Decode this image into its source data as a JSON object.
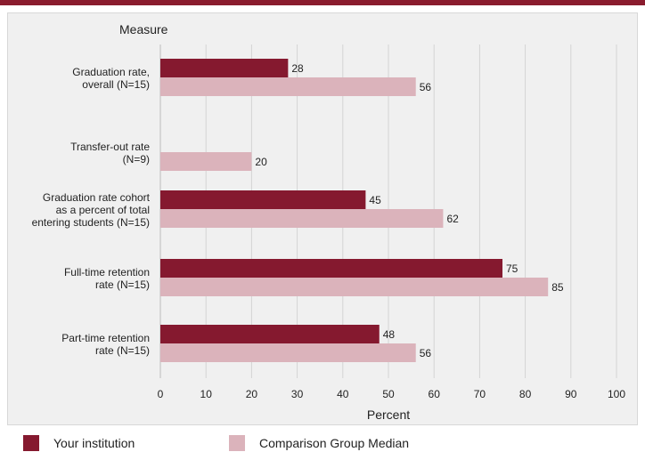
{
  "chart_data": {
    "type": "bar",
    "orientation": "horizontal",
    "title": "",
    "category_axis_title": "Measure",
    "xlabel": "Percent",
    "xlim": [
      0,
      100
    ],
    "xticks": [
      0,
      10,
      20,
      30,
      40,
      50,
      60,
      70,
      80,
      90,
      100
    ],
    "grid": true,
    "legend_position": "bottom",
    "categories": [
      [
        "Graduation rate,",
        "overall (N=15)"
      ],
      [
        "Transfer-out rate",
        "(N=9)"
      ],
      [
        "Graduation rate cohort",
        "as a percent of total",
        "entering students (N=15)"
      ],
      [
        "Full-time retention",
        "rate (N=15)"
      ],
      [
        "Part-time retention",
        "rate (N=15)"
      ]
    ],
    "series": [
      {
        "name": "Your institution",
        "color": "#85192f",
        "values": [
          28,
          null,
          45,
          75,
          48
        ]
      },
      {
        "name": "Comparison Group Median",
        "color": "#dbb3bb",
        "values": [
          56,
          20,
          62,
          85,
          56
        ]
      }
    ]
  }
}
